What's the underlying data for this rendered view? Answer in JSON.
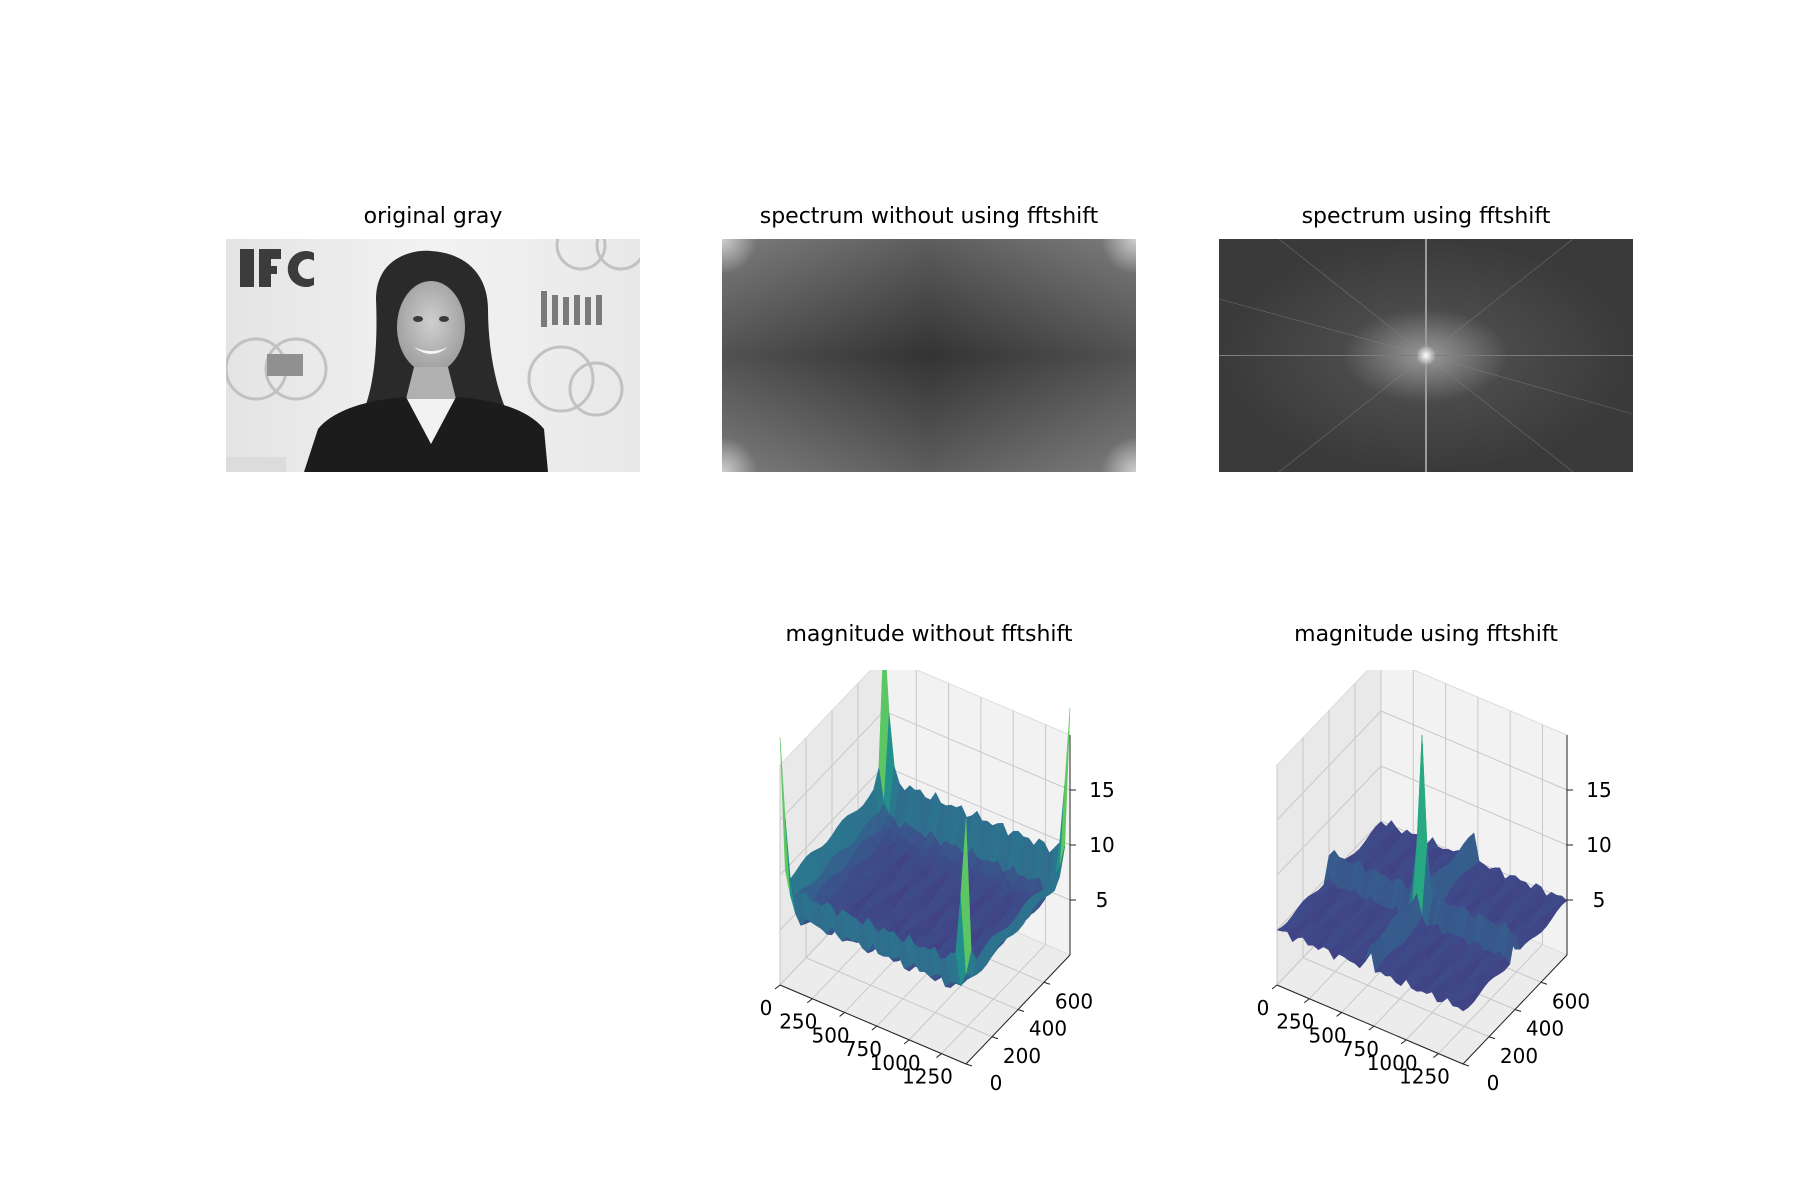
{
  "chart_data": [
    {
      "type": "image",
      "title": "original gray",
      "colormap": "gray"
    },
    {
      "type": "heatmap",
      "title": "spectrum without using fftshift",
      "colormap": "gray"
    },
    {
      "type": "heatmap",
      "title": "spectrum using fftshift",
      "colormap": "gray"
    },
    {
      "type": "surface",
      "title": "magnitude without fftshift",
      "colormap": "viridis",
      "x_ticks": [
        "0",
        "250",
        "500",
        "750",
        "1000",
        "1250"
      ],
      "y_ticks": [
        "0",
        "200",
        "400",
        "600"
      ],
      "z_ticks": [
        "5",
        "10",
        "15"
      ],
      "z_range": [
        1.5,
        18
      ],
      "corner_peaks_z": 17.5,
      "center_peak_z": 11
    },
    {
      "type": "surface",
      "title": "magnitude using fftshift",
      "colormap": "viridis",
      "x_ticks": [
        "0",
        "250",
        "500",
        "750",
        "1000",
        "1250"
      ],
      "y_ticks": [
        "0",
        "200",
        "400",
        "600"
      ],
      "z_ticks": [
        "5",
        "10",
        "15"
      ],
      "z_range": [
        1.5,
        18
      ],
      "center_peak_z": 17.5
    }
  ],
  "colors": {
    "background": "#ffffff",
    "pane": "#f2f2f2",
    "viridis_low": "#440154",
    "viridis_mid": "#21918c",
    "viridis_high": "#fde725"
  }
}
